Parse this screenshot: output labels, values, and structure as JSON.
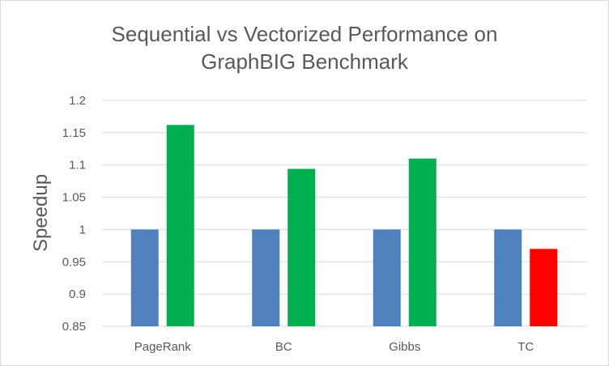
{
  "chart_data": {
    "type": "bar",
    "title": [
      "Sequential vs Vectorized Performance on",
      "GraphBIG Benchmark"
    ],
    "xlabel": "",
    "ylabel": "Speedup",
    "categories": [
      "PageRank",
      "BC",
      "Gibbs",
      "TC"
    ],
    "ylim": [
      0.85,
      1.2
    ],
    "yticks": [
      0.85,
      0.9,
      0.95,
      1,
      1.05,
      1.1,
      1.15,
      1.2
    ],
    "ytick_labels": [
      "0.85",
      "0.9",
      "0.95",
      "1",
      "1.05",
      "1.1",
      "1.15",
      "1.2"
    ],
    "grid": true,
    "legend": "none",
    "series": [
      {
        "values": [
          1,
          1,
          1,
          1
        ],
        "colors": [
          "#4f81bd",
          "#4f81bd",
          "#4f81bd",
          "#4f81bd"
        ]
      },
      {
        "values": [
          1.162,
          1.094,
          1.11,
          0.97
        ],
        "colors": [
          "#00b050",
          "#00b050",
          "#00b050",
          "#ff0000"
        ]
      }
    ]
  }
}
